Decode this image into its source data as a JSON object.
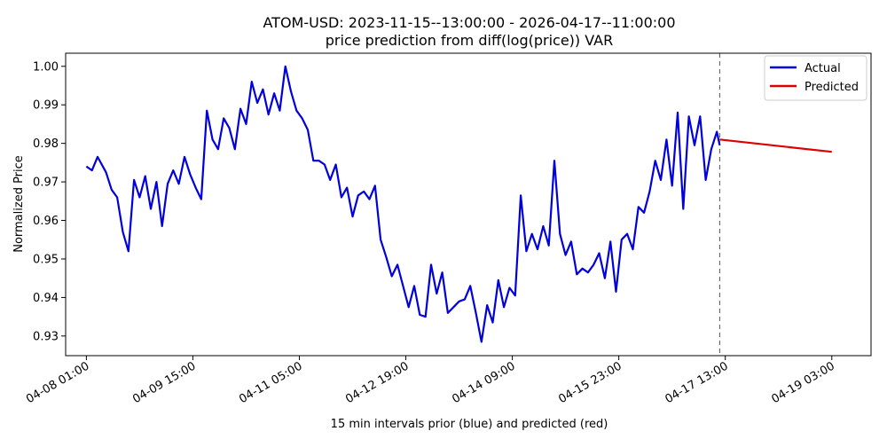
{
  "chart_data": {
    "type": "line",
    "title": "ATOM-USD: 2023-11-15--13:00:00 - 2026-04-17--11:00:00",
    "subtitle": "price prediction from diff(log(price)) VAR",
    "xlabel": "15 min intervals prior (blue) and predicted (red)",
    "ylabel": "Normalized Price",
    "x_ticks": [
      "04-08 01:00",
      "04-09 15:00",
      "04-11 05:00",
      "04-12 19:00",
      "04-14 09:00",
      "04-15 23:00",
      "04-17 13:00",
      "04-19 03:00"
    ],
    "y_ticks": [
      "0.93",
      "0.94",
      "0.95",
      "0.96",
      "0.97",
      "0.98",
      "0.99",
      "1.00"
    ],
    "xlim": [
      "2026-04-07 17:36",
      "2026-04-19 17:00"
    ],
    "ylim": [
      0.9249,
      1.0034
    ],
    "grid": false,
    "legend_position": "top-right",
    "forecast_start": "2026-04-17 11:00",
    "series": [
      {
        "name": "Actual",
        "color": "#0000dd",
        "points": [
          [
            "2026-04-08 01:00",
            0.974
          ],
          [
            "2026-04-08 03:00",
            0.973
          ],
          [
            "2026-04-08 05:00",
            0.9765
          ],
          [
            "2026-04-08 08:00",
            0.9725
          ],
          [
            "2026-04-08 10:00",
            0.968
          ],
          [
            "2026-04-08 12:00",
            0.966
          ],
          [
            "2026-04-08 14:00",
            0.957
          ],
          [
            "2026-04-08 16:00",
            0.952
          ],
          [
            "2026-04-08 18:00",
            0.9705
          ],
          [
            "2026-04-08 20:00",
            0.966
          ],
          [
            "2026-04-08 22:00",
            0.9715
          ],
          [
            "2026-04-09 00:00",
            0.963
          ],
          [
            "2026-04-09 02:00",
            0.97
          ],
          [
            "2026-04-09 04:00",
            0.9585
          ],
          [
            "2026-04-09 06:00",
            0.9695
          ],
          [
            "2026-04-09 08:00",
            0.973
          ],
          [
            "2026-04-09 10:00",
            0.9695
          ],
          [
            "2026-04-09 12:00",
            0.9765
          ],
          [
            "2026-04-09 14:00",
            0.972
          ],
          [
            "2026-04-09 16:00",
            0.9685
          ],
          [
            "2026-04-09 18:00",
            0.9655
          ],
          [
            "2026-04-09 20:00",
            0.9885
          ],
          [
            "2026-04-09 22:00",
            0.981
          ],
          [
            "2026-04-10 00:00",
            0.9785
          ],
          [
            "2026-04-10 02:00",
            0.9865
          ],
          [
            "2026-04-10 04:00",
            0.984
          ],
          [
            "2026-04-10 06:00",
            0.9785
          ],
          [
            "2026-04-10 08:00",
            0.989
          ],
          [
            "2026-04-10 10:00",
            0.985
          ],
          [
            "2026-04-10 12:00",
            0.996
          ],
          [
            "2026-04-10 14:00",
            0.9905
          ],
          [
            "2026-04-10 16:00",
            0.994
          ],
          [
            "2026-04-10 18:00",
            0.9875
          ],
          [
            "2026-04-10 20:00",
            0.993
          ],
          [
            "2026-04-10 22:00",
            0.9885
          ],
          [
            "2026-04-11 00:00",
            1.0
          ],
          [
            "2026-04-11 02:00",
            0.9935
          ],
          [
            "2026-04-11 04:00",
            0.9885
          ],
          [
            "2026-04-11 06:00",
            0.9865
          ],
          [
            "2026-04-11 08:00",
            0.9835
          ],
          [
            "2026-04-11 10:00",
            0.9755
          ],
          [
            "2026-04-11 12:00",
            0.9755
          ],
          [
            "2026-04-11 14:00",
            0.9745
          ],
          [
            "2026-04-11 16:00",
            0.9705
          ],
          [
            "2026-04-11 18:00",
            0.9745
          ],
          [
            "2026-04-11 20:00",
            0.966
          ],
          [
            "2026-04-11 22:00",
            0.9685
          ],
          [
            "2026-04-12 00:00",
            0.961
          ],
          [
            "2026-04-12 02:00",
            0.9665
          ],
          [
            "2026-04-12 04:00",
            0.9675
          ],
          [
            "2026-04-12 06:00",
            0.9655
          ],
          [
            "2026-04-12 08:00",
            0.969
          ],
          [
            "2026-04-12 10:00",
            0.955
          ],
          [
            "2026-04-12 12:00",
            0.9505
          ],
          [
            "2026-04-12 14:00",
            0.9455
          ],
          [
            "2026-04-12 16:00",
            0.9485
          ],
          [
            "2026-04-12 18:00",
            0.943
          ],
          [
            "2026-04-12 20:00",
            0.9375
          ],
          [
            "2026-04-12 22:00",
            0.943
          ],
          [
            "2026-04-13 00:00",
            0.9355
          ],
          [
            "2026-04-13 02:00",
            0.935
          ],
          [
            "2026-04-13 04:00",
            0.9485
          ],
          [
            "2026-04-13 06:00",
            0.941
          ],
          [
            "2026-04-13 08:00",
            0.9465
          ],
          [
            "2026-04-13 10:00",
            0.936
          ],
          [
            "2026-04-13 12:00",
            0.9375
          ],
          [
            "2026-04-13 14:00",
            0.939
          ],
          [
            "2026-04-13 16:00",
            0.9395
          ],
          [
            "2026-04-13 18:00",
            0.943
          ],
          [
            "2026-04-13 20:00",
            0.936
          ],
          [
            "2026-04-13 22:00",
            0.9285
          ],
          [
            "2026-04-14 00:00",
            0.938
          ],
          [
            "2026-04-14 02:00",
            0.9335
          ],
          [
            "2026-04-14 04:00",
            0.9445
          ],
          [
            "2026-04-14 06:00",
            0.9375
          ],
          [
            "2026-04-14 08:00",
            0.9425
          ],
          [
            "2026-04-14 10:00",
            0.9405
          ],
          [
            "2026-04-14 12:00",
            0.9665
          ],
          [
            "2026-04-14 14:00",
            0.952
          ],
          [
            "2026-04-14 16:00",
            0.9565
          ],
          [
            "2026-04-14 18:00",
            0.9525
          ],
          [
            "2026-04-14 20:00",
            0.9585
          ],
          [
            "2026-04-14 22:00",
            0.9535
          ],
          [
            "2026-04-15 00:00",
            0.9755
          ],
          [
            "2026-04-15 02:00",
            0.9565
          ],
          [
            "2026-04-15 04:00",
            0.951
          ],
          [
            "2026-04-15 06:00",
            0.9545
          ],
          [
            "2026-04-15 08:00",
            0.946
          ],
          [
            "2026-04-15 10:00",
            0.9475
          ],
          [
            "2026-04-15 12:00",
            0.9465
          ],
          [
            "2026-04-15 14:00",
            0.9485
          ],
          [
            "2026-04-15 16:00",
            0.9515
          ],
          [
            "2026-04-15 18:00",
            0.945
          ],
          [
            "2026-04-15 20:00",
            0.9545
          ],
          [
            "2026-04-15 22:00",
            0.9415
          ],
          [
            "2026-04-16 00:00",
            0.955
          ],
          [
            "2026-04-16 02:00",
            0.9565
          ],
          [
            "2026-04-16 04:00",
            0.9525
          ],
          [
            "2026-04-16 06:00",
            0.9635
          ],
          [
            "2026-04-16 08:00",
            0.962
          ],
          [
            "2026-04-16 10:00",
            0.9675
          ],
          [
            "2026-04-16 12:00",
            0.9755
          ],
          [
            "2026-04-16 14:00",
            0.9705
          ],
          [
            "2026-04-16 16:00",
            0.981
          ],
          [
            "2026-04-16 18:00",
            0.969
          ],
          [
            "2026-04-16 20:00",
            0.988
          ],
          [
            "2026-04-16 22:00",
            0.963
          ],
          [
            "2026-04-17 00:00",
            0.987
          ],
          [
            "2026-04-17 02:00",
            0.9795
          ],
          [
            "2026-04-17 04:00",
            0.987
          ],
          [
            "2026-04-17 06:00",
            0.9705
          ],
          [
            "2026-04-17 08:00",
            0.9785
          ],
          [
            "2026-04-17 10:00",
            0.983
          ],
          [
            "2026-04-17 11:00",
            0.9795
          ]
        ]
      },
      {
        "name": "Predicted",
        "color": "#dd0000",
        "points": [
          [
            "2026-04-17 11:00",
            0.981
          ],
          [
            "2026-04-19 03:00",
            0.9778
          ]
        ]
      }
    ]
  }
}
